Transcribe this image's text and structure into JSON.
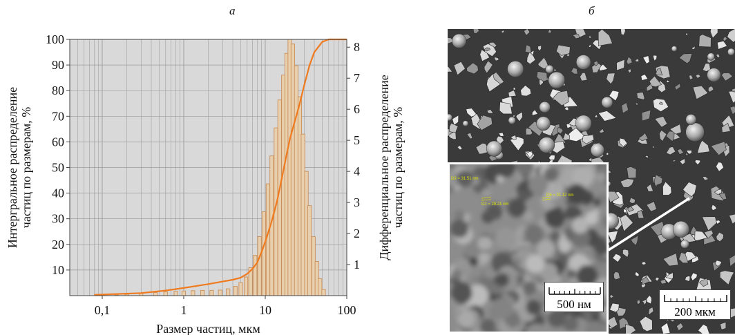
{
  "panel_a_label": "а",
  "panel_b_label": "б",
  "colors": {
    "bar_fill": "#e8cfae",
    "bar_edge": "#c98f5a",
    "curve": "#f07a1e",
    "plot_bg": "#d9d9d9",
    "grid": "#9a9a9a"
  },
  "chart_data": {
    "type": "bar",
    "xlabel": "Размер частиц, мкм",
    "ylabel_left": "Интергральное распределение частиц по размерам, %",
    "ylabel_right": "Дифференциальное распределение частиц по размерам, %",
    "x_scale": "log",
    "xlim": [
      0.04,
      100
    ],
    "x_ticks": [
      0.1,
      1,
      10,
      100
    ],
    "x_tick_labels": [
      "0,1",
      "1",
      "10",
      "100"
    ],
    "ylim_left": [
      0,
      100
    ],
    "y_ticks_left": [
      10,
      20,
      30,
      40,
      50,
      60,
      70,
      80,
      90,
      100
    ],
    "ylim_right": [
      0,
      8.25
    ],
    "y_ticks_right": [
      1,
      2,
      3,
      4,
      5,
      6,
      7,
      8
    ],
    "grid": true,
    "series": [
      {
        "type": "bar",
        "axis": "right",
        "bins": [
          [
            0.15,
            0.02
          ],
          [
            0.2,
            0.04
          ],
          [
            0.3,
            0.07
          ],
          [
            0.45,
            0.1
          ],
          [
            0.6,
            0.12
          ],
          [
            0.8,
            0.14
          ],
          [
            1.0,
            0.15
          ],
          [
            1.3,
            0.16
          ],
          [
            1.7,
            0.17
          ],
          [
            2.2,
            0.17
          ],
          [
            2.8,
            0.18
          ],
          [
            3.5,
            0.22
          ],
          [
            4.3,
            0.3
          ],
          [
            5.0,
            0.42
          ],
          [
            5.8,
            0.6
          ],
          [
            6.6,
            0.9
          ],
          [
            7.5,
            1.3
          ],
          [
            8.5,
            1.9
          ],
          [
            9.6,
            2.7
          ],
          [
            10.8,
            3.6
          ],
          [
            12.0,
            4.5
          ],
          [
            13.5,
            5.4
          ],
          [
            15.0,
            6.3
          ],
          [
            16.7,
            7.1
          ],
          [
            18.3,
            7.8
          ],
          [
            20.0,
            8.25
          ],
          [
            21.8,
            8.1
          ],
          [
            24.0,
            7.4
          ],
          [
            26.5,
            6.4
          ],
          [
            29.0,
            5.2
          ],
          [
            32.0,
            4.0
          ],
          [
            35.0,
            2.9
          ],
          [
            39.0,
            1.9
          ],
          [
            43.0,
            1.1
          ],
          [
            47.0,
            0.55
          ],
          [
            52.0,
            0.2
          ]
        ]
      },
      {
        "type": "line",
        "axis": "left",
        "points": [
          [
            0.08,
            0.3
          ],
          [
            0.3,
            1
          ],
          [
            0.6,
            2
          ],
          [
            1,
            3
          ],
          [
            2,
            4.5
          ],
          [
            3,
            5.5
          ],
          [
            4,
            6.2
          ],
          [
            5,
            7
          ],
          [
            6,
            8.5
          ],
          [
            7,
            10.5
          ],
          [
            8,
            13
          ],
          [
            9,
            17
          ],
          [
            10,
            21
          ],
          [
            12,
            29
          ],
          [
            14,
            37
          ],
          [
            16,
            46
          ],
          [
            18,
            54
          ],
          [
            20,
            61
          ],
          [
            23,
            68
          ],
          [
            26,
            74
          ],
          [
            30,
            82
          ],
          [
            35,
            90
          ],
          [
            40,
            95
          ],
          [
            50,
            99
          ],
          [
            60,
            100
          ],
          [
            100,
            100
          ]
        ]
      }
    ]
  },
  "micrograph": {
    "inset_scalebar": "500 нм",
    "main_scalebar": "200 мкм",
    "annotations": [
      "D3 = 31.51 nm",
      "D2 = 28.21 nm",
      "D5 = 31.12 nm"
    ]
  }
}
